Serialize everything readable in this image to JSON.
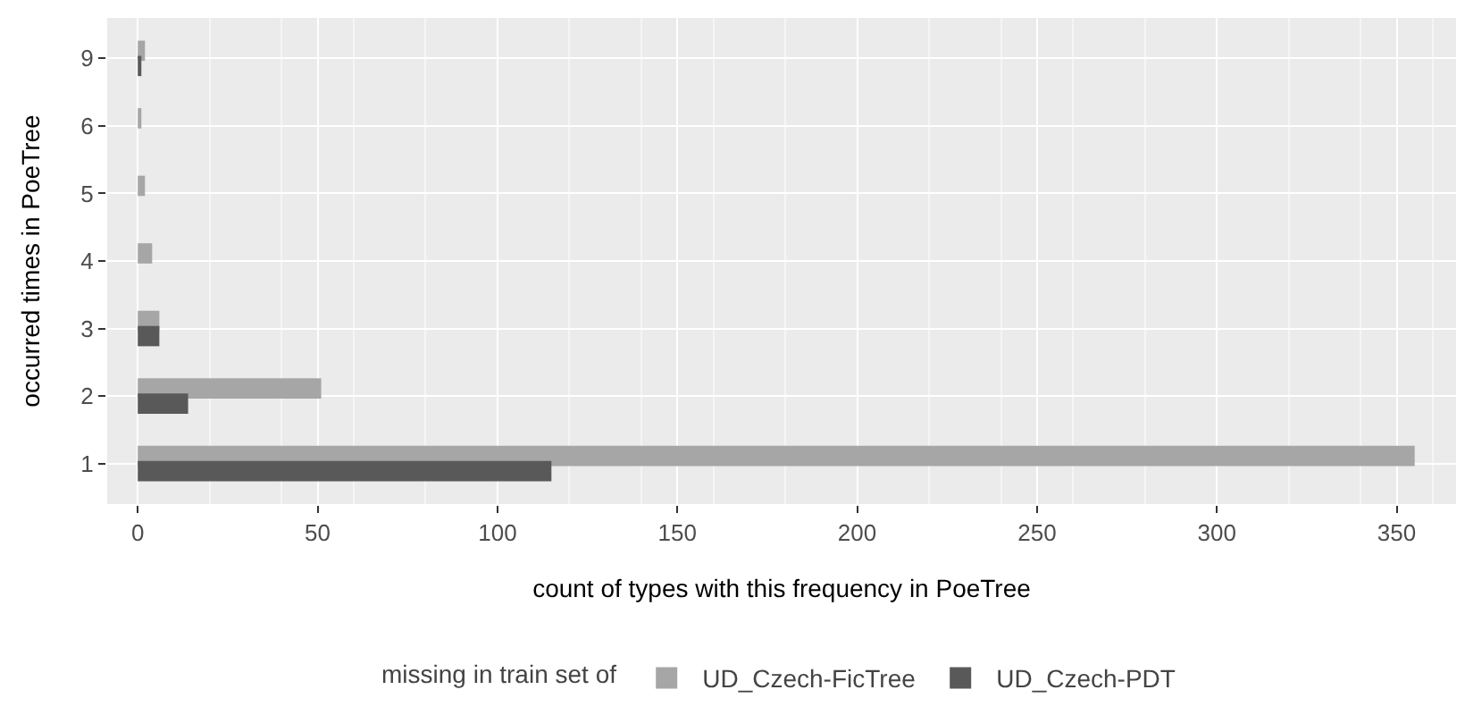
{
  "chart_data": {
    "type": "bar",
    "orientation": "horizontal",
    "categories": [
      "9",
      "6",
      "5",
      "4",
      "3",
      "2",
      "1"
    ],
    "xlabel": "count of types with this frequency in PoeTree",
    "ylabel": "occurred times in PoeTree",
    "legend_title": "missing in train set of",
    "series": [
      {
        "name": "UD_Czech-FicTree",
        "color": "#a6a6a6",
        "values": [
          2,
          1,
          2,
          4,
          6,
          51,
          355
        ]
      },
      {
        "name": "UD_Czech-PDT",
        "color": "#595959",
        "values": [
          1,
          null,
          null,
          null,
          6,
          14,
          115
        ]
      }
    ],
    "xlim": [
      -8.5,
      366.5
    ],
    "xticks": [
      0,
      50,
      100,
      150,
      200,
      250,
      300,
      350
    ],
    "grid": true,
    "legend": "bottom"
  }
}
